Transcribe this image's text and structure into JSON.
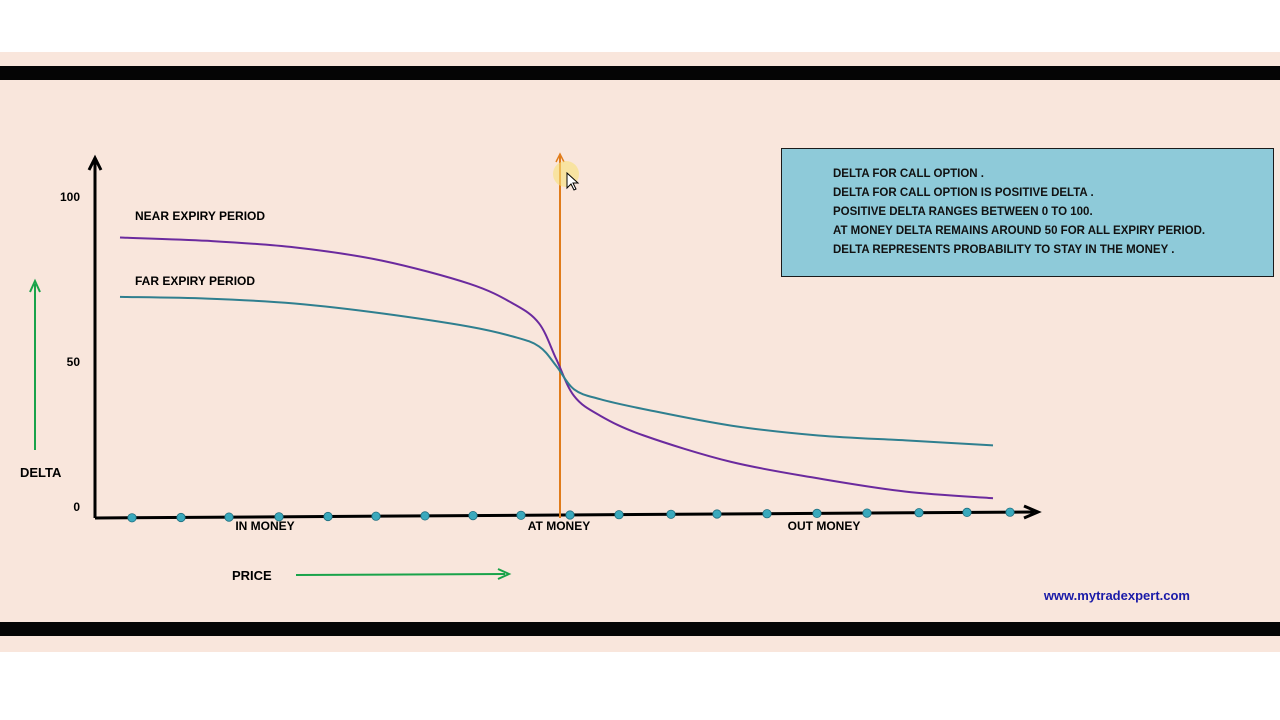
{
  "colors": {
    "background": "#f9e6dc",
    "frame_bar": "#050505",
    "axis": "#000000",
    "near_curve": "#6b2a9e",
    "far_curve": "#2f7f8f",
    "atm_line": "#e07b1a",
    "arrow_green": "#19a34a",
    "marker": "#3aa9bd",
    "info_box_bg": "#8ecad9",
    "website": "#1a1aa8",
    "cursor_highlight": "#f7e17a"
  },
  "info_box": {
    "lines": [
      "DELTA FOR CALL OPTION .",
      "DELTA FOR CALL OPTION IS POSITIVE DELTA .",
      "POSITIVE DELTA RANGES BETWEEN 0 TO 100.",
      "AT MONEY DELTA REMAINS AROUND 50 FOR ALL EXPIRY PERIOD.",
      "DELTA REPRESENTS PROBABILITY TO STAY IN THE MONEY ."
    ]
  },
  "website": "www.mytradexpert.com",
  "chart_data": {
    "type": "line",
    "title": "",
    "xlabel": "PRICE",
    "ylabel": "DELTA",
    "y_ticks": [
      "100",
      "50",
      "0"
    ],
    "ylim": [
      0,
      100
    ],
    "x_regions": [
      "IN MONEY",
      "AT MONEY",
      "OUT MONEY"
    ],
    "xlim": [
      0,
      1
    ],
    "at_money_x": 0.5,
    "grid": false,
    "series": [
      {
        "name": "NEAR EXPIRY PERIOD",
        "x": [
          0.0,
          0.1,
          0.2,
          0.3,
          0.4,
          0.45,
          0.48,
          0.5,
          0.52,
          0.55,
          0.6,
          0.7,
          0.8,
          0.9,
          1.0
        ],
        "values": [
          85,
          84,
          82,
          78,
          71,
          65,
          59,
          48,
          37,
          31,
          25,
          17,
          12,
          8,
          6
        ]
      },
      {
        "name": "FAR EXPIRY PERIOD",
        "x": [
          0.0,
          0.1,
          0.2,
          0.3,
          0.4,
          0.45,
          0.48,
          0.5,
          0.52,
          0.55,
          0.6,
          0.7,
          0.8,
          0.9,
          1.0
        ],
        "values": [
          67,
          66.5,
          65,
          62,
          58,
          55,
          52,
          46,
          39,
          36,
          33,
          28,
          25,
          23.5,
          22
        ]
      }
    ]
  }
}
